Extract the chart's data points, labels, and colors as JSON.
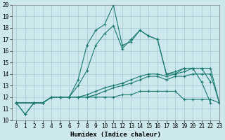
{
  "xlabel": "Humidex (Indice chaleur)",
  "xlim": [
    -0.5,
    23
  ],
  "ylim": [
    10,
    20
  ],
  "background_color": "#cce8ec",
  "grid_color": "#aacdd4",
  "line_color": "#1a7a6e",
  "series": [
    {
      "x": [
        0,
        1,
        2,
        3,
        4,
        5,
        6,
        7,
        8,
        9,
        10,
        11,
        12,
        13,
        14,
        15,
        16,
        17,
        18,
        19,
        20,
        21,
        22
      ],
      "y": [
        11.5,
        10.5,
        11.5,
        11.5,
        12.0,
        12.0,
        12.0,
        13.5,
        16.5,
        17.8,
        18.3,
        20.0,
        16.5,
        16.8,
        17.8,
        17.3,
        17.0,
        14.0,
        14.0,
        14.5,
        14.5,
        13.3,
        11.5
      ]
    },
    {
      "x": [
        0,
        1,
        2,
        3,
        4,
        5,
        6,
        7,
        8,
        9,
        10,
        11,
        12,
        13,
        14,
        15,
        16,
        17,
        18,
        19,
        20,
        21,
        22
      ],
      "y": [
        11.5,
        10.5,
        11.5,
        11.5,
        12.0,
        12.0,
        12.0,
        13.0,
        14.3,
        16.5,
        17.5,
        18.2,
        16.2,
        17.0,
        17.8,
        17.3,
        17.0,
        14.0,
        14.2,
        14.5,
        14.5,
        14.5,
        13.3
      ]
    },
    {
      "x": [
        0,
        2,
        3,
        4,
        5,
        6,
        7,
        8,
        9,
        10,
        11,
        12,
        13,
        14,
        15,
        16,
        17,
        18,
        19,
        20,
        21,
        22,
        23
      ],
      "y": [
        11.5,
        11.5,
        11.5,
        12.0,
        12.0,
        12.0,
        12.0,
        12.2,
        12.5,
        12.8,
        13.0,
        13.2,
        13.5,
        13.8,
        14.0,
        14.0,
        13.8,
        14.0,
        14.2,
        14.5,
        14.5,
        14.5,
        11.5
      ]
    },
    {
      "x": [
        0,
        2,
        3,
        4,
        5,
        6,
        7,
        8,
        9,
        10,
        11,
        12,
        13,
        14,
        15,
        16,
        17,
        18,
        19,
        20,
        21,
        22,
        23
      ],
      "y": [
        11.5,
        11.5,
        11.5,
        12.0,
        12.0,
        12.0,
        12.0,
        12.0,
        12.2,
        12.5,
        12.8,
        13.0,
        13.2,
        13.5,
        13.8,
        13.8,
        13.5,
        13.8,
        13.8,
        14.0,
        14.0,
        14.0,
        11.5
      ]
    },
    {
      "x": [
        0,
        2,
        3,
        4,
        5,
        6,
        7,
        8,
        9,
        10,
        11,
        12,
        13,
        14,
        15,
        16,
        17,
        18,
        19,
        20,
        21,
        22,
        23
      ],
      "y": [
        11.5,
        11.5,
        11.5,
        12.0,
        12.0,
        12.0,
        12.0,
        12.0,
        12.0,
        12.0,
        12.0,
        12.2,
        12.2,
        12.5,
        12.5,
        12.5,
        12.5,
        12.5,
        11.8,
        11.8,
        11.8,
        11.8,
        11.5
      ]
    }
  ],
  "xticks": [
    0,
    1,
    2,
    3,
    4,
    5,
    6,
    7,
    8,
    9,
    10,
    11,
    12,
    13,
    14,
    15,
    16,
    17,
    18,
    19,
    20,
    21,
    22,
    23
  ],
  "yticks": [
    10,
    11,
    12,
    13,
    14,
    15,
    16,
    17,
    18,
    19,
    20
  ],
  "tick_fontsize": 5.5,
  "axis_fontsize": 6.5
}
